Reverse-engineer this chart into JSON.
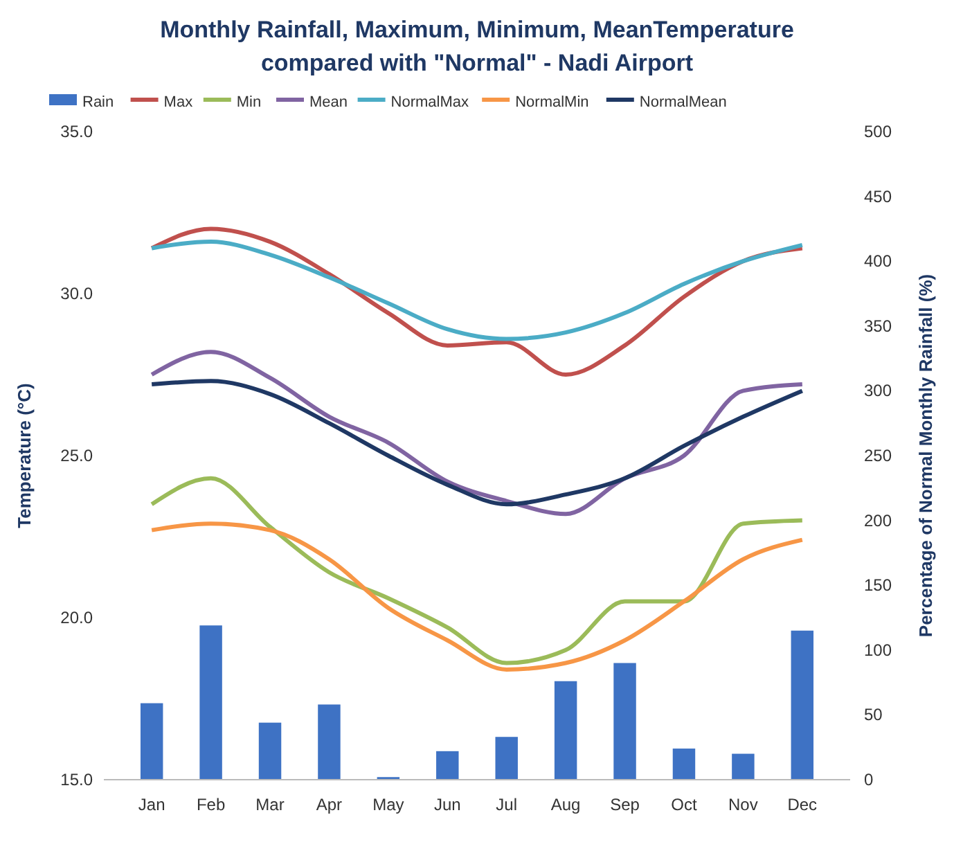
{
  "chart_data": {
    "type": "line",
    "title": "Monthly Rainfall, Maximum, Minimum, MeanTemperature\ncompared with \"Normal\" - Nadi Airport",
    "ylabel": "Temperature (°C)",
    "y2label": "Percentage of Normal Monthly Rainfall (%)",
    "categories": [
      "Jan",
      "Feb",
      "Mar",
      "Apr",
      "May",
      "Jun",
      "Jul",
      "Aug",
      "Sep",
      "Oct",
      "Nov",
      "Dec"
    ],
    "series": [
      {
        "name": "Rain",
        "type": "bar",
        "axis": "y2",
        "color": "#3e72c4",
        "values": [
          59,
          119,
          44,
          58,
          2,
          22,
          33,
          76,
          90,
          24,
          20,
          115
        ]
      },
      {
        "name": "Max",
        "color": "#c0504d",
        "values": [
          31.4,
          32.0,
          31.6,
          30.6,
          29.4,
          28.4,
          28.5,
          27.5,
          28.4,
          29.9,
          31.0,
          31.4
        ]
      },
      {
        "name": "Min",
        "color": "#9bbb59",
        "values": [
          23.5,
          24.3,
          22.8,
          21.4,
          20.6,
          19.7,
          18.6,
          19.0,
          20.5,
          20.5,
          22.9,
          23.0
        ]
      },
      {
        "name": "Mean",
        "color": "#8064a2",
        "values": [
          27.5,
          28.2,
          27.4,
          26.2,
          25.4,
          24.2,
          23.6,
          23.2,
          24.3,
          25.0,
          27.0,
          27.2
        ]
      },
      {
        "name": "NormalMax",
        "color": "#4bacc6",
        "values": [
          31.4,
          31.6,
          31.2,
          30.5,
          29.7,
          28.9,
          28.6,
          28.8,
          29.4,
          30.3,
          31.0,
          31.5
        ]
      },
      {
        "name": "NormalMin",
        "color": "#f79646",
        "values": [
          22.7,
          22.9,
          22.7,
          21.8,
          20.3,
          19.3,
          18.4,
          18.6,
          19.3,
          20.5,
          21.8,
          22.4
        ]
      },
      {
        "name": "NormalMean",
        "color": "#1f3864",
        "values": [
          27.2,
          27.3,
          26.9,
          26.0,
          25.0,
          24.1,
          23.5,
          23.8,
          24.3,
          25.3,
          26.2,
          27.0
        ]
      }
    ],
    "ylim": [
      15,
      35
    ],
    "yticks": [
      {
        "value": 15,
        "label": "15.0"
      },
      {
        "value": 20,
        "label": "20.0"
      },
      {
        "value": 25,
        "label": "25.0"
      },
      {
        "value": 30,
        "label": "30.0"
      },
      {
        "value": 35,
        "label": "35.0"
      }
    ],
    "y2lim": [
      0,
      500
    ],
    "y2ticks": [
      0,
      50,
      100,
      150,
      200,
      250,
      300,
      350,
      400,
      450,
      500
    ],
    "legend": "top",
    "grid": false,
    "marker": "none",
    "line_style": "solid"
  }
}
